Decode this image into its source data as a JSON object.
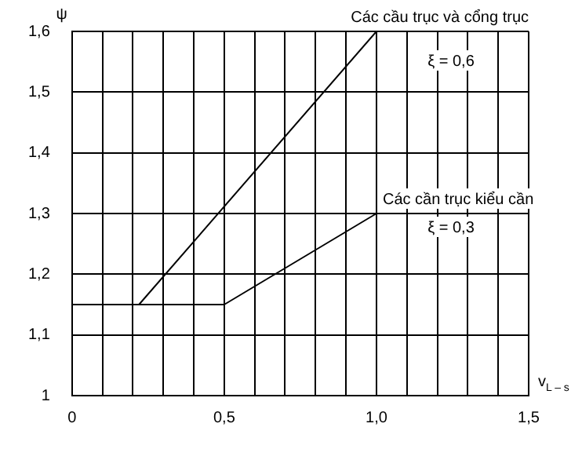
{
  "chart_data": {
    "type": "line",
    "xlabel": "v$_{L – s}$",
    "ylabel": "ψ",
    "xlim": [
      0,
      1.5
    ],
    "ylim": [
      1,
      1.6
    ],
    "xticks": [
      0,
      {
        "value": 0.1,
        "label": null
      },
      {
        "value": 0.2,
        "label": null
      },
      {
        "value": 0.3,
        "label": null
      },
      {
        "value": 0.4,
        "label": null
      },
      {
        "value": 0.5,
        "label": "0,5"
      },
      {
        "value": 0.6,
        "label": null
      },
      {
        "value": 0.7,
        "label": null
      },
      {
        "value": 0.8,
        "label": null
      },
      {
        "value": 0.9,
        "label": null
      },
      {
        "value": 1.0,
        "label": "1,0"
      },
      {
        "value": 1.1,
        "label": null
      },
      {
        "value": 1.2,
        "label": null
      },
      {
        "value": 1.3,
        "label": null
      },
      {
        "value": 1.4,
        "label": null
      },
      {
        "value": 1.5,
        "label": "1,5"
      }
    ],
    "yticks": [
      1,
      {
        "value": 1.1,
        "label": "1,1"
      },
      {
        "value": 1.2,
        "label": "1,2"
      },
      {
        "value": 1.3,
        "label": "1,3"
      },
      {
        "value": 1.4,
        "label": "1,4"
      },
      {
        "value": 1.5,
        "label": "1,5"
      },
      {
        "value": 1.6,
        "label": "1,6"
      }
    ],
    "series": [
      {
        "name": "Các cầu trục và cổng trục",
        "color": "#000000",
        "x": [
          0,
          0.22,
          1.0,
          1.5
        ],
        "values": [
          1.15,
          1.15,
          1.6,
          1.6
        ]
      },
      {
        "name": "Các cần trục kiểu cần",
        "color": "#000000",
        "x": [
          0,
          0.5,
          1.0
        ],
        "values": [
          1.15,
          1.15,
          1.3
        ]
      }
    ],
    "annotations": [
      "ξ = 0,6",
      "ξ = 0,3"
    ],
    "grid": true,
    "legend": false,
    "marker": "none",
    "line_style": "solid"
  }
}
